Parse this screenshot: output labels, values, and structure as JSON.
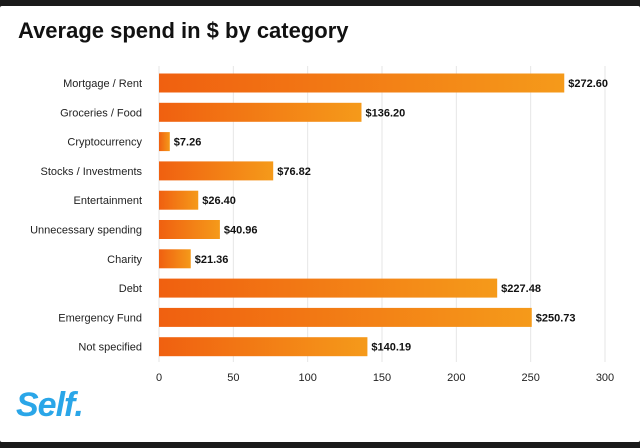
{
  "title": "Average spend in $ by category",
  "logo_text": "Self.",
  "colors": {
    "bar_start": "#f06010",
    "bar_end": "#f59a1a",
    "grid": "#e6e6e6",
    "logo": "#2aa6e8"
  },
  "chart_data": {
    "type": "bar",
    "orientation": "horizontal",
    "title": "Average spend in $ by category",
    "categories": [
      "Mortgage / Rent",
      "Groceries / Food",
      "Cryptocurrency",
      "Stocks / Investments",
      "Entertainment",
      "Unnecessary spending",
      "Charity",
      "Debt",
      "Emergency Fund",
      "Not specified"
    ],
    "values": [
      272.6,
      136.2,
      7.26,
      76.82,
      26.4,
      40.96,
      21.36,
      227.48,
      250.73,
      140.19
    ],
    "value_labels": [
      "$272.60",
      "$136.20",
      "$7.26",
      "$76.82",
      "$26.40",
      "$40.96",
      "$21.36",
      "$227.48",
      "$250.73",
      "$140.19"
    ],
    "xlim": [
      0,
      300
    ],
    "xticks": [
      0,
      50,
      100,
      150,
      200,
      250,
      300
    ],
    "grid": true,
    "legend": false
  }
}
